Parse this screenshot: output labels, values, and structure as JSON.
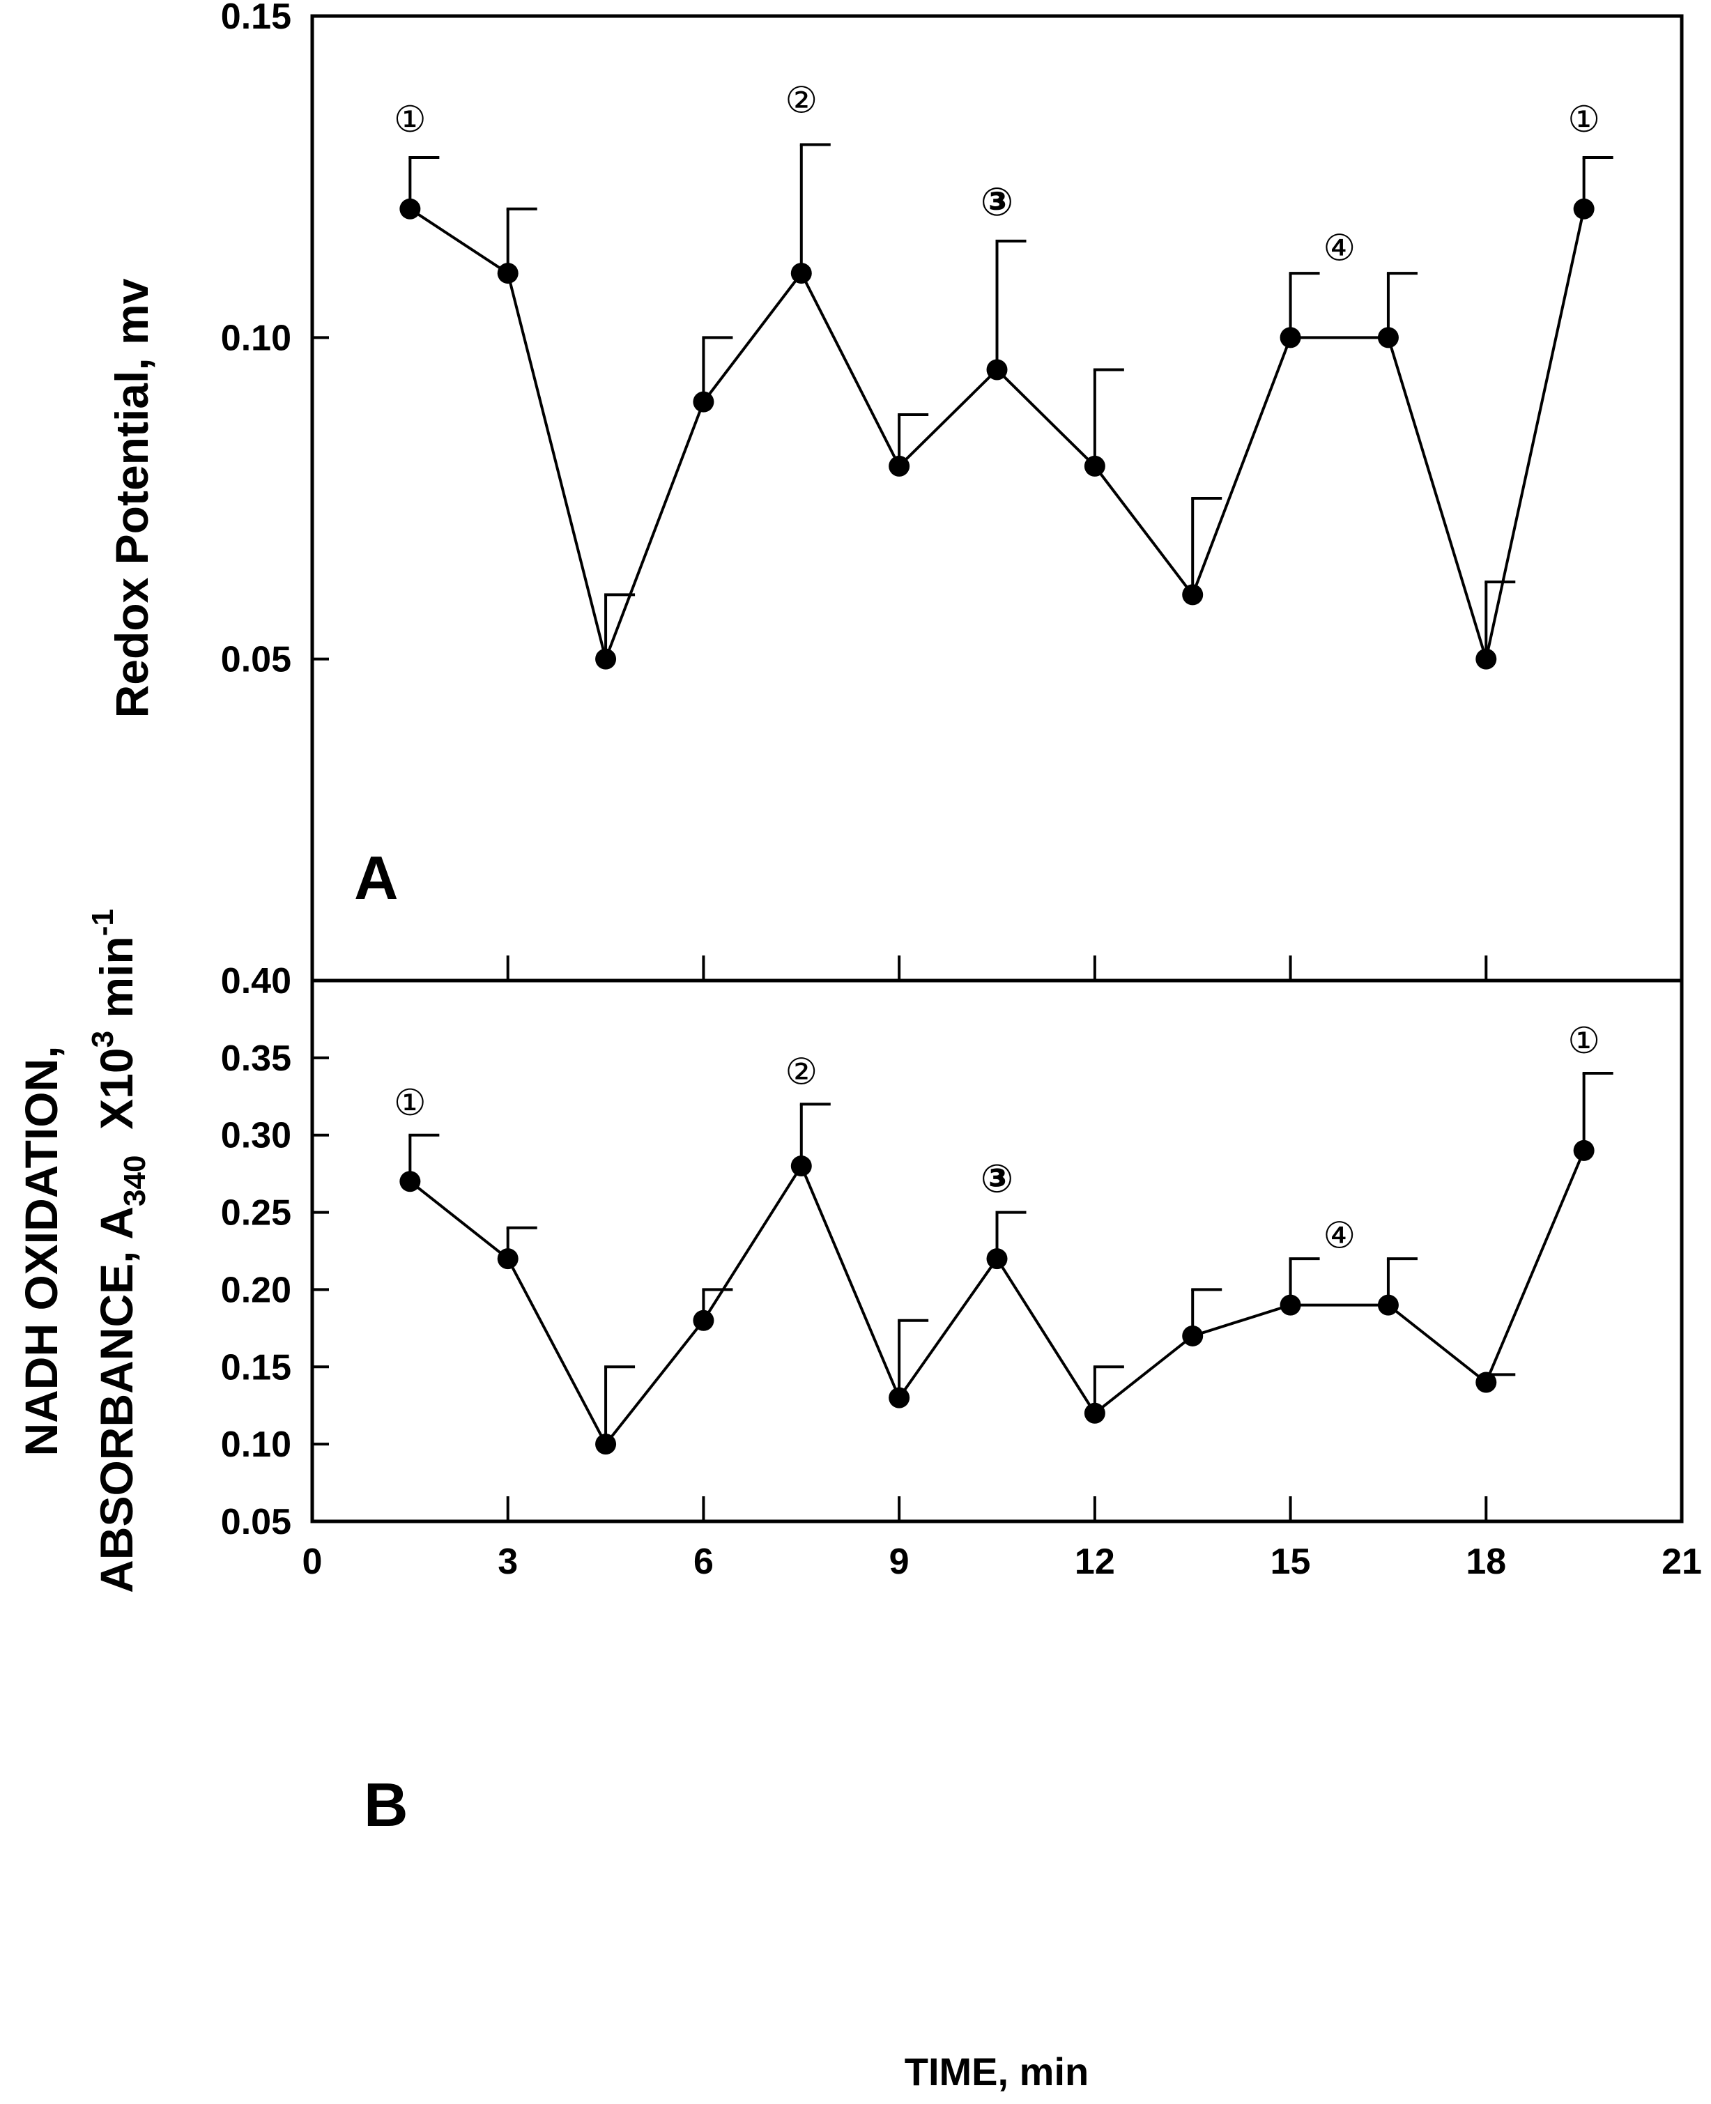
{
  "chart_data": [
    {
      "type": "line",
      "panel": "A",
      "ylabel": "Redox Potential, mv",
      "xlabel": "TIME, min",
      "xlim": [
        0,
        21
      ],
      "ylim": [
        0.0,
        0.15
      ],
      "yticks": [
        0.05,
        0.1,
        0.15
      ],
      "ytick_labels": [
        "0.05",
        "0.10",
        "0.15"
      ],
      "x": [
        1.5,
        3,
        4.5,
        6,
        7.5,
        9,
        10.5,
        12,
        13.5,
        15,
        16.5,
        18,
        19.5
      ],
      "values": [
        0.12,
        0.11,
        0.05,
        0.09,
        0.11,
        0.08,
        0.095,
        0.08,
        0.06,
        0.1,
        0.1,
        0.05,
        0.12
      ],
      "error_upper": [
        0.128,
        0.12,
        0.06,
        0.1,
        0.13,
        0.088,
        0.115,
        0.095,
        0.075,
        0.11,
        0.11,
        0.062,
        0.128
      ],
      "annotations": [
        {
          "text": "①",
          "x": 1.5,
          "y": 0.132
        },
        {
          "text": "②",
          "x": 7.5,
          "y": 0.135
        },
        {
          "text": "③",
          "x": 10.5,
          "y": 0.119
        },
        {
          "text": "④",
          "x": 15.75,
          "y": 0.112
        },
        {
          "text": "①",
          "x": 19.5,
          "y": 0.132
        }
      ]
    },
    {
      "type": "line",
      "panel": "B",
      "ylabel_line1": "NADH OXIDATION,",
      "ylabel_line2_prefix": "ABSORBANCE, A",
      "ylabel_line2_sub": "340",
      "ylabel_line2_mid": "  X10",
      "ylabel_line2_sup": "3",
      "ylabel_line2_unit": " min",
      "ylabel_line2_unit_sup": "-1",
      "xlabel": "TIME, min",
      "xlim": [
        0,
        21
      ],
      "ylim": [
        0.05,
        0.4
      ],
      "xticks": [
        0,
        3,
        6,
        9,
        12,
        15,
        18,
        21
      ],
      "xtick_labels": [
        "0",
        "3",
        "6",
        "9",
        "12",
        "15",
        "18",
        "21"
      ],
      "yticks": [
        0.05,
        0.1,
        0.15,
        0.2,
        0.25,
        0.3,
        0.35,
        0.4
      ],
      "ytick_labels": [
        "0.05",
        "0.10",
        "0.15",
        "0.20",
        "0.25",
        "0.30",
        "0.35",
        "0.40"
      ],
      "x": [
        1.5,
        3,
        4.5,
        6,
        7.5,
        9,
        10.5,
        12,
        13.5,
        15,
        16.5,
        18,
        19.5
      ],
      "values": [
        0.27,
        0.22,
        0.1,
        0.18,
        0.28,
        0.13,
        0.22,
        0.12,
        0.17,
        0.19,
        0.19,
        0.14,
        0.29
      ],
      "error_upper": [
        0.3,
        0.24,
        0.15,
        0.2,
        0.32,
        0.18,
        0.25,
        0.15,
        0.2,
        0.22,
        0.22,
        0.145,
        0.34
      ],
      "annotations": [
        {
          "text": "①",
          "x": 1.5,
          "y": 0.313
        },
        {
          "text": "②",
          "x": 7.5,
          "y": 0.333
        },
        {
          "text": "③",
          "x": 10.5,
          "y": 0.263
        },
        {
          "text": "④",
          "x": 15.75,
          "y": 0.227
        },
        {
          "text": "①",
          "x": 19.5,
          "y": 0.353
        }
      ]
    }
  ]
}
